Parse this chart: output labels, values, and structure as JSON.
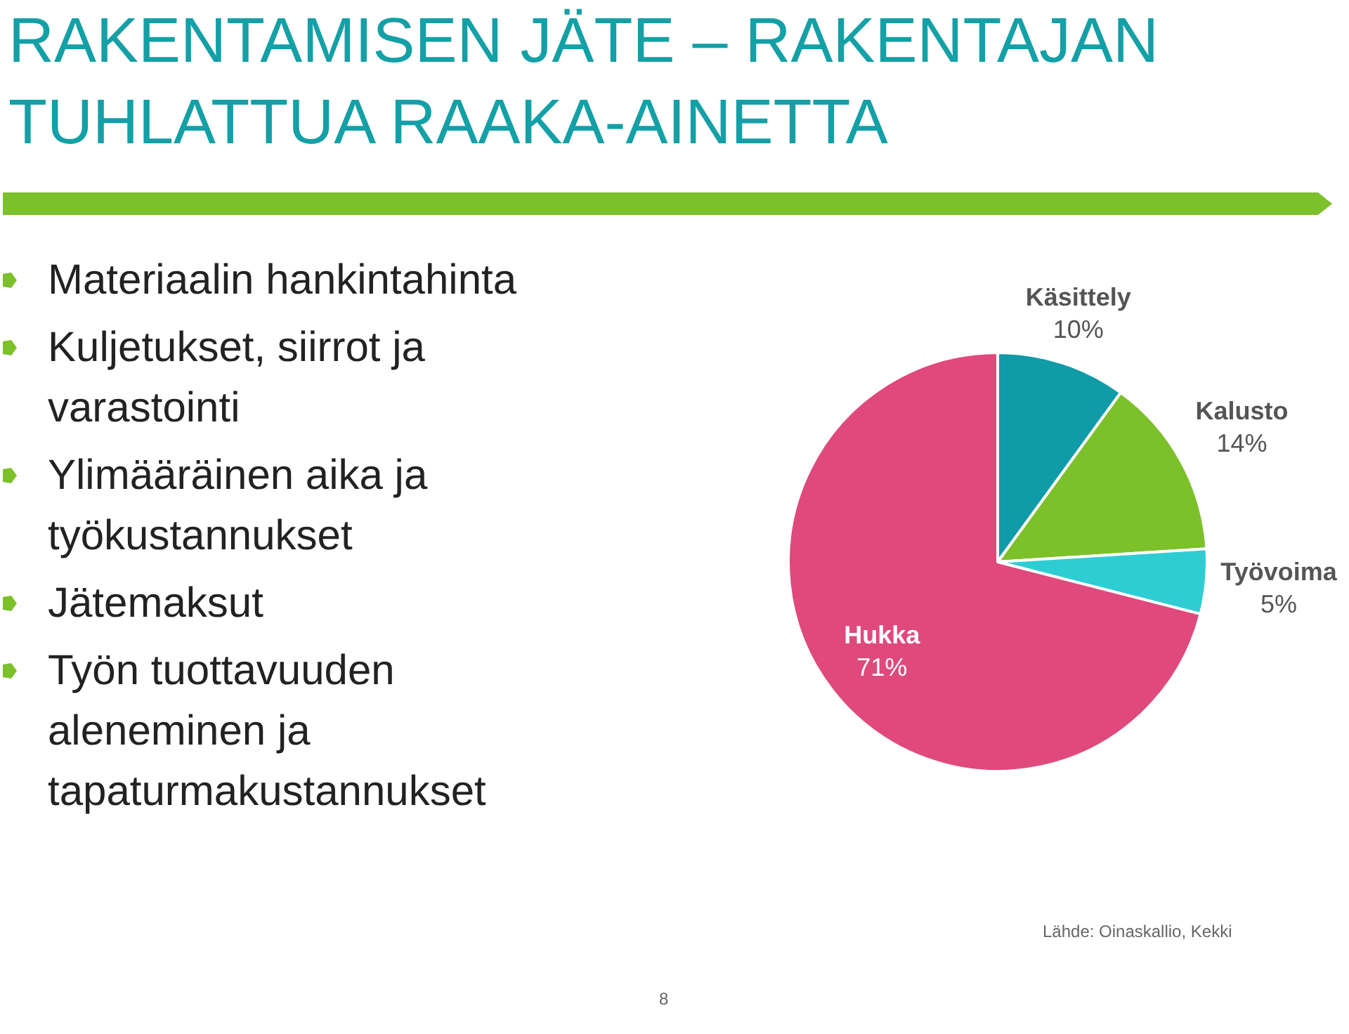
{
  "chart_data": {
    "type": "pie",
    "title": "RAKENTAMISEN JÄTE – RAKENTAJAN TUHLATTUA RAAKA-AINETTA",
    "categories": [
      "Käsittely",
      "Kalusto",
      "Työvoima",
      "Hukka"
    ],
    "values": [
      10,
      14,
      5,
      71
    ],
    "colors": [
      "#0f9ba8",
      "#7cc02a",
      "#2ecdd3",
      "#e0497b"
    ],
    "value_labels": [
      "10%",
      "14%",
      "5%",
      "71%"
    ],
    "legend": false,
    "annotations": [
      "Materiaalin hankintahinta",
      "Kuljetukset, siirrot ja varastointi",
      "Ylimääräinen aika ja työkustannukset",
      "Jätemaksut",
      "Työn tuottavuuden aleneminen ja tapaturmakustannukset",
      "Lähde: Oinaskallio, Kekki",
      "8"
    ]
  }
}
